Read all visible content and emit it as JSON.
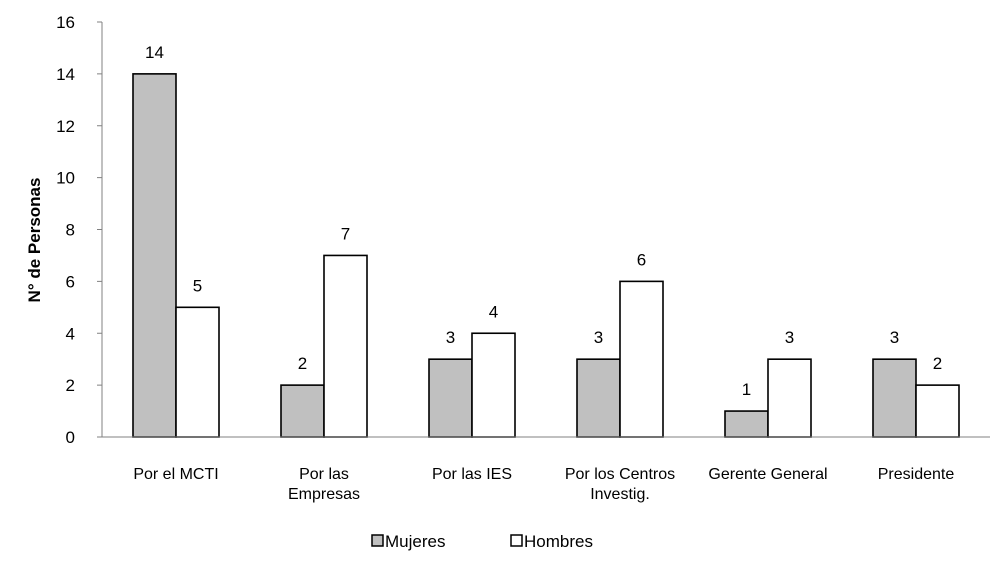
{
  "chart_data": {
    "type": "bar",
    "title": "",
    "xlabel": "",
    "ylabel": "N° de Personas",
    "ylim": [
      0,
      16
    ],
    "yticks": [
      "0",
      "2",
      "4",
      "6",
      "8",
      "10",
      "12",
      "14",
      "16"
    ],
    "categories": [
      [
        "Por el MCTI"
      ],
      [
        "Por las",
        "Empresas"
      ],
      [
        "Por las IES"
      ],
      [
        "Por los Centros",
        "Investig."
      ],
      [
        "Gerente General"
      ],
      [
        "Presidente"
      ]
    ],
    "series": [
      {
        "name": "Mujeres",
        "values": [
          14,
          2,
          3,
          3,
          1,
          3
        ],
        "color": "#c0c0c0"
      },
      {
        "name": "Hombres",
        "values": [
          5,
          7,
          4,
          6,
          3,
          2
        ],
        "color": "#ffffff"
      }
    ],
    "grid": false,
    "legend_position": "bottom",
    "data_labels": true
  }
}
